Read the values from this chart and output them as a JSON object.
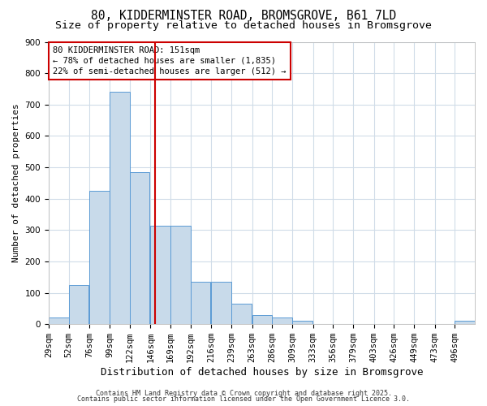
{
  "title": "80, KIDDERMINSTER ROAD, BROMSGROVE, B61 7LD",
  "subtitle": "Size of property relative to detached houses in Bromsgrove",
  "xlabel": "Distribution of detached houses by size in Bromsgrove",
  "ylabel": "Number of detached properties",
  "bins": [
    29,
    52,
    76,
    99,
    122,
    146,
    169,
    192,
    216,
    239,
    263,
    286,
    309,
    333,
    356,
    379,
    403,
    426,
    449,
    473,
    496
  ],
  "counts": [
    20,
    125,
    425,
    740,
    485,
    315,
    315,
    135,
    135,
    65,
    30,
    20,
    10,
    0,
    0,
    0,
    0,
    0,
    0,
    0,
    10
  ],
  "bar_facecolor": "#c8daea",
  "bar_edgecolor": "#5b9bd5",
  "vline_x": 151,
  "vline_color": "#cc0000",
  "annotation_text": "80 KIDDERMINSTER ROAD: 151sqm\n← 78% of detached houses are smaller (1,835)\n22% of semi-detached houses are larger (512) →",
  "annotation_box_edgecolor": "#cc0000",
  "annotation_box_facecolor": "white",
  "ylim": [
    0,
    900
  ],
  "yticks": [
    0,
    100,
    200,
    300,
    400,
    500,
    600,
    700,
    800,
    900
  ],
  "background_color": "#ffffff",
  "axes_background": "#ffffff",
  "grid_color": "#d0dce8",
  "footer_line1": "Contains HM Land Registry data © Crown copyright and database right 2025.",
  "footer_line2": "Contains public sector information licensed under the Open Government Licence 3.0.",
  "title_fontsize": 10.5,
  "subtitle_fontsize": 9.5,
  "xlabel_fontsize": 9,
  "ylabel_fontsize": 8,
  "tick_fontsize": 7.5,
  "footer_fontsize": 6,
  "annotation_fontsize": 7.5
}
